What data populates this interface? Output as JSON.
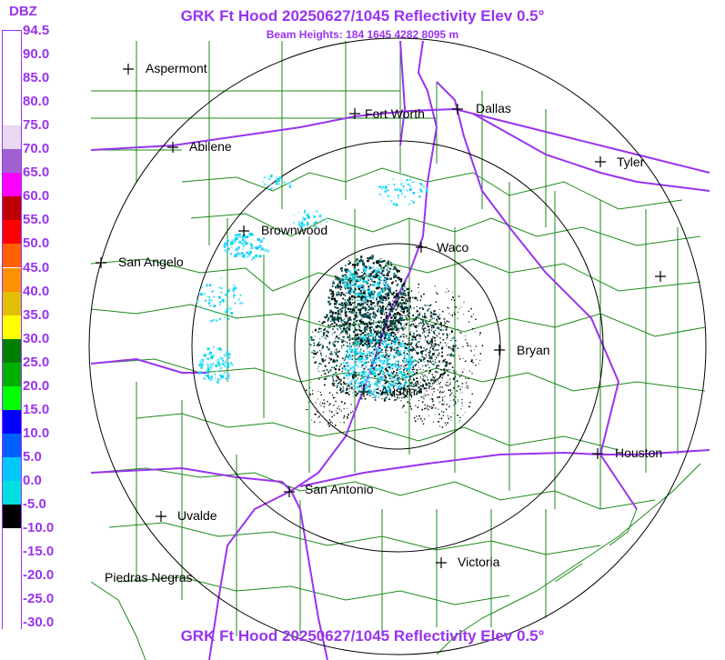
{
  "title": "GRK Ft Hood 20250627/1045 Reflectivity Elev 0.5°",
  "subtitle": "Beam Heights: 184 1645 4282 8095 m",
  "footer": "GRK Ft Hood 20250627/1045 Reflectivity Elev 0.5°",
  "scale": {
    "unit": "DBZ",
    "entries": [
      {
        "label": "94.5",
        "color": "#ffffff"
      },
      {
        "label": "90.0",
        "color": "#ffffff"
      },
      {
        "label": "85.0",
        "color": "#ffffff"
      },
      {
        "label": "80.0",
        "color": "#ffffff"
      },
      {
        "label": "75.0",
        "color": "#e8d8f0"
      },
      {
        "label": "70.0",
        "color": "#a060d0"
      },
      {
        "label": "65.0",
        "color": "#ff00ff"
      },
      {
        "label": "60.0",
        "color": "#c00000"
      },
      {
        "label": "55.0",
        "color": "#ff0000"
      },
      {
        "label": "50.0",
        "color": "#ff6000"
      },
      {
        "label": "45.0",
        "color": "#ff9000"
      },
      {
        "label": "40.0",
        "color": "#e0c000"
      },
      {
        "label": "35.0",
        "color": "#ffff00"
      },
      {
        "label": "30.0",
        "color": "#008000"
      },
      {
        "label": "25.0",
        "color": "#00b000"
      },
      {
        "label": "20.0",
        "color": "#00ff00"
      },
      {
        "label": "15.0",
        "color": "#0000ff"
      },
      {
        "label": "10.0",
        "color": "#0060ff"
      },
      {
        "label": "5.0",
        "color": "#00c8ff"
      },
      {
        "label": "0.0",
        "color": "#00e0e0"
      },
      {
        "label": "-5.0",
        "color": "#000000"
      },
      {
        "label": "-10.0",
        "color": "#ffffff"
      },
      {
        "label": "-15.0",
        "color": "#ffffff"
      },
      {
        "label": "-20.0",
        "color": "#ffffff"
      },
      {
        "label": "-25.0",
        "color": "#ffffff"
      },
      {
        "label": "-30.0",
        "color": "#ffffff"
      }
    ]
  },
  "cities": [
    {
      "name": "Aspermont"
    },
    {
      "name": "Fort Worth"
    },
    {
      "name": "Dallas"
    },
    {
      "name": "Abilene"
    },
    {
      "name": "Tyler"
    },
    {
      "name": "Brownwood"
    },
    {
      "name": "Waco"
    },
    {
      "name": "San Angelo"
    },
    {
      "name": ""
    },
    {
      "name": "Bryan"
    },
    {
      "name": "Austin"
    },
    {
      "name": "Houston"
    },
    {
      "name": "San Antonio"
    },
    {
      "name": "Uvalde"
    },
    {
      "name": "Victoria"
    },
    {
      "name": "Piedras Negras"
    }
  ],
  "colors": {
    "title": "#9933ee",
    "counties": "#1a8a1a",
    "highways": "#9933ee",
    "range_rings": "#000000"
  }
}
